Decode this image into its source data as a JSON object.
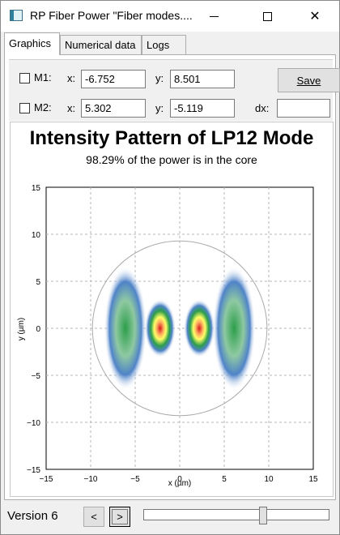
{
  "window": {
    "title": "RP Fiber Power \"Fiber modes....",
    "app_icon": "fiber-power-icon",
    "minimize_icon": "minimize-icon",
    "maximize_icon": "maximize-icon",
    "close_icon": "close-icon",
    "close_label": "✕"
  },
  "tabs": [
    {
      "label": "Graphics",
      "active": true
    },
    {
      "label": "Numerical data",
      "active": false
    },
    {
      "label": "Logs",
      "active": false
    }
  ],
  "markers": {
    "m1": {
      "label": "M1:",
      "x_label": "x:",
      "x_value": "-6.752",
      "y_label": "y:",
      "y_value": "8.501",
      "checked": false
    },
    "m2": {
      "label": "M2:",
      "x_label": "x:",
      "x_value": "5.302",
      "y_label": "y:",
      "y_value": "-5.119",
      "checked": false
    },
    "dx_label": "dx:",
    "dx_value": "",
    "save_label": "Save"
  },
  "chart_data": {
    "type": "heatmap",
    "title": "Intensity Pattern of LP12 Mode",
    "subtitle": "98.29% of the power is in the core",
    "xlabel": "x (µm)",
    "ylabel": "y (µm)",
    "xlim": [
      -15,
      15
    ],
    "ylim": [
      -15,
      15
    ],
    "x_ticks": [
      -15,
      -10,
      -5,
      0,
      5,
      10,
      15
    ],
    "y_ticks": [
      15,
      10,
      5,
      0,
      -5,
      -10,
      -15
    ],
    "grid": true,
    "core_radius": 9.8,
    "mode": "LP12",
    "colors": {
      "high": "#d7191c",
      "mid": "#ffff66",
      "low": "#2c9e4a",
      "faint": "#4f83c8",
      "background": "#ffffff"
    }
  },
  "status": {
    "version": "Version 6",
    "prev_label": "<",
    "next_label": ">",
    "slider_value": 0.65
  }
}
